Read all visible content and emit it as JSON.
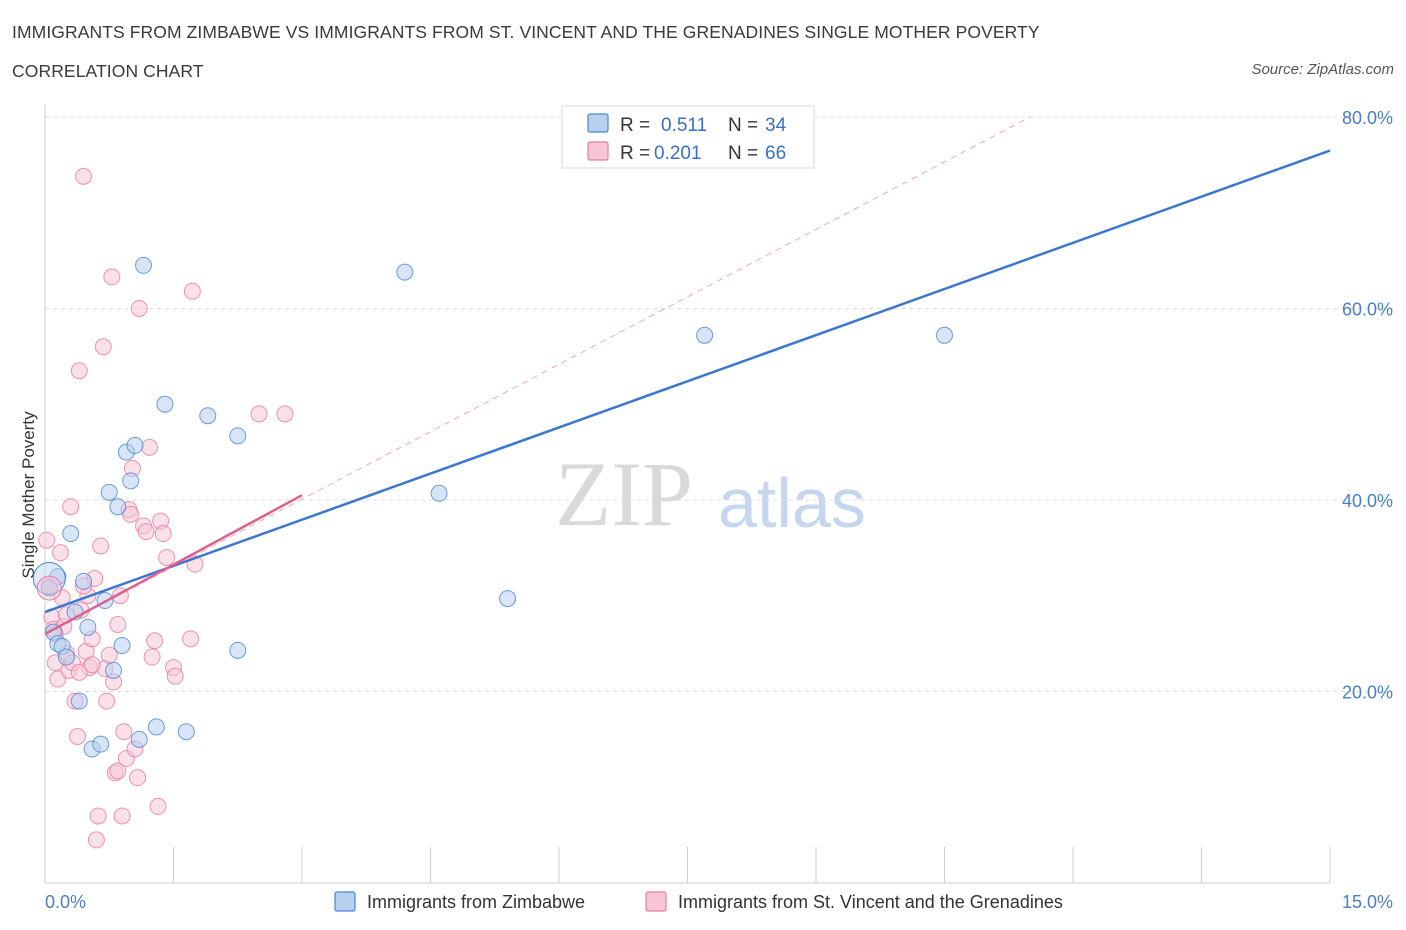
{
  "title_line1": "IMMIGRANTS FROM ZIMBABWE VS IMMIGRANTS FROM ST. VINCENT AND THE GRENADINES SINGLE MOTHER POVERTY",
  "title_line2": "CORRELATION CHART",
  "source": "Source: ZipAtlas.com",
  "watermark": {
    "zip": "ZIP",
    "atlas": "atlas"
  },
  "colors": {
    "blue": "#4a86d6",
    "blue_fill": "#b8d0f0",
    "blue_line": "#3a78d0",
    "pink": "#e87aa0",
    "pink_fill": "#f6c6d6",
    "pink_line": "#e0608c",
    "grid": "#dcdcdc",
    "axis_text": "#4a7fc8"
  },
  "legend": {
    "rows": [
      {
        "r_label": "R =",
        "r_value": "0.511",
        "n_label": "N =",
        "n_value": "34"
      },
      {
        "r_label": "R =",
        "r_value": "0.201",
        "n_label": "N =",
        "n_value": "66"
      }
    ]
  },
  "chart_data": {
    "type": "scatter",
    "title": "Immigrants from Zimbabwe vs Immigrants from St. Vincent and the Grenadines Single Mother Poverty Correlation Chart",
    "xlabel": "",
    "ylabel": "Single Mother Poverty",
    "xlim": [
      0,
      15
    ],
    "ylim": [
      0,
      80
    ],
    "x_tick_labels": [
      {
        "x": 0,
        "label": "0.0%"
      },
      {
        "x": 15,
        "label": "15.0%"
      }
    ],
    "y_tick_labels": [
      {
        "y": 20,
        "label": "20.0%"
      },
      {
        "y": 40,
        "label": "40.0%"
      },
      {
        "y": 60,
        "label": "60.0%"
      },
      {
        "y": 80,
        "label": "80.0%"
      }
    ],
    "grid": true,
    "series": [
      {
        "name": "Immigrants from Zimbabwe",
        "R": 0.511,
        "N": 34,
        "trend": {
          "x": [
            0,
            15
          ],
          "y": [
            28.3,
            76.5
          ]
        },
        "points": [
          [
            0.05,
            30.8
          ],
          [
            0.1,
            26.2
          ],
          [
            0.15,
            25.0
          ],
          [
            0.2,
            24.7
          ],
          [
            0.25,
            23.6
          ],
          [
            0.3,
            36.5
          ],
          [
            0.35,
            28.3
          ],
          [
            0.4,
            19.0
          ],
          [
            0.45,
            31.5
          ],
          [
            0.5,
            26.7
          ],
          [
            0.55,
            14.0
          ],
          [
            0.65,
            14.5
          ],
          [
            0.7,
            29.5
          ],
          [
            0.75,
            40.8
          ],
          [
            0.8,
            22.2
          ],
          [
            0.85,
            39.3
          ],
          [
            0.9,
            24.8
          ],
          [
            0.95,
            45.0
          ],
          [
            1.0,
            42.0
          ],
          [
            1.05,
            45.7
          ],
          [
            1.1,
            15.0
          ],
          [
            1.15,
            64.5
          ],
          [
            1.3,
            16.3
          ],
          [
            1.4,
            50.0
          ],
          [
            1.65,
            15.8
          ],
          [
            1.9,
            48.8
          ],
          [
            2.25,
            46.7
          ],
          [
            2.25,
            24.3
          ],
          [
            4.2,
            63.8
          ],
          [
            4.6,
            40.7
          ],
          [
            5.4,
            29.7
          ],
          [
            7.7,
            57.2
          ],
          [
            10.5,
            57.2
          ],
          [
            0.15,
            32.0
          ]
        ]
      },
      {
        "name": "Immigrants from St. Vincent and the Grenadines",
        "R": 0.201,
        "N": 66,
        "trend": {
          "x": [
            0,
            3.0
          ],
          "y": [
            26.0,
            40.5
          ]
        },
        "trend_extended": {
          "x": [
            0,
            11.5
          ],
          "y": [
            26.0,
            80.0
          ]
        },
        "points": [
          [
            0.02,
            35.8
          ],
          [
            0.05,
            31.0
          ],
          [
            0.08,
            27.8
          ],
          [
            0.1,
            26.5
          ],
          [
            0.12,
            23.0
          ],
          [
            0.15,
            21.3
          ],
          [
            0.18,
            34.5
          ],
          [
            0.2,
            29.8
          ],
          [
            0.22,
            26.8
          ],
          [
            0.25,
            24.0
          ],
          [
            0.28,
            22.2
          ],
          [
            0.3,
            39.3
          ],
          [
            0.32,
            23.0
          ],
          [
            0.35,
            19.0
          ],
          [
            0.38,
            15.3
          ],
          [
            0.4,
            53.5
          ],
          [
            0.42,
            28.5
          ],
          [
            0.45,
            73.8
          ],
          [
            0.48,
            24.2
          ],
          [
            0.5,
            30.0
          ],
          [
            0.52,
            22.5
          ],
          [
            0.55,
            25.5
          ],
          [
            0.58,
            31.8
          ],
          [
            0.6,
            4.5
          ],
          [
            0.62,
            7.0
          ],
          [
            0.65,
            35.2
          ],
          [
            0.68,
            56.0
          ],
          [
            0.7,
            22.4
          ],
          [
            0.72,
            19.0
          ],
          [
            0.75,
            23.8
          ],
          [
            0.78,
            63.3
          ],
          [
            0.8,
            21.0
          ],
          [
            0.82,
            11.5
          ],
          [
            0.85,
            11.7
          ],
          [
            0.88,
            30.0
          ],
          [
            0.9,
            7.0
          ],
          [
            0.92,
            15.8
          ],
          [
            0.95,
            13.0
          ],
          [
            0.98,
            39.0
          ],
          [
            1.0,
            38.5
          ],
          [
            1.02,
            43.3
          ],
          [
            1.05,
            14.0
          ],
          [
            1.08,
            11.0
          ],
          [
            1.1,
            60.0
          ],
          [
            1.15,
            37.3
          ],
          [
            1.18,
            36.7
          ],
          [
            1.22,
            45.5
          ],
          [
            1.25,
            23.6
          ],
          [
            1.28,
            25.3
          ],
          [
            1.32,
            8.0
          ],
          [
            1.35,
            37.8
          ],
          [
            1.38,
            36.5
          ],
          [
            1.42,
            34.0
          ],
          [
            1.5,
            22.5
          ],
          [
            1.52,
            21.6
          ],
          [
            1.7,
            25.5
          ],
          [
            1.72,
            61.8
          ],
          [
            1.75,
            33.3
          ],
          [
            2.5,
            49.0
          ],
          [
            2.8,
            49.0
          ],
          [
            0.12,
            26.0
          ],
          [
            0.4,
            22.0
          ],
          [
            0.55,
            22.8
          ],
          [
            0.25,
            28.0
          ],
          [
            0.85,
            27.0
          ],
          [
            0.45,
            31.0
          ]
        ]
      }
    ],
    "bottom_legend": [
      "Immigrants from Zimbabwe",
      "Immigrants from St. Vincent and the Grenadines"
    ]
  }
}
